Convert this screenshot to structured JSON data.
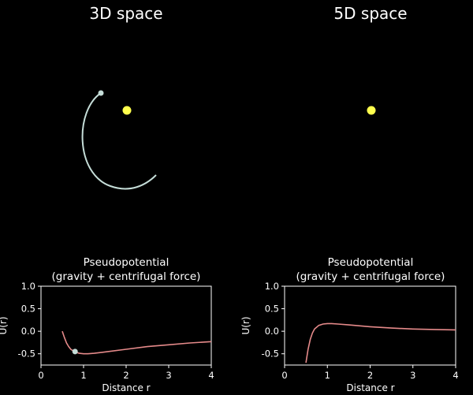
{
  "colors": {
    "background": "#000000",
    "text": "#ffffff",
    "star": "#ffff4d",
    "orbit": "#c5ddd8",
    "planet": "#c5ddd8",
    "curve": "#e58a8a",
    "axes": "#ffffff"
  },
  "panels": [
    {
      "title": "3D space"
    },
    {
      "title": "5D space"
    }
  ],
  "chart_data": [
    {
      "type": "line",
      "title": "Pseudopotential",
      "subtitle": "(gravity + centrifugal force)",
      "xlabel": "Distance r",
      "ylabel": "U(r)",
      "xlim": [
        0,
        4
      ],
      "ylim": [
        -0.75,
        1.0
      ],
      "xticks": [
        "0",
        "1",
        "2",
        "3",
        "4"
      ],
      "yticks": [
        "1.0",
        "0.5",
        "0.0",
        "-0.5"
      ],
      "ytick_values": [
        1.0,
        0.5,
        0.0,
        -0.5
      ],
      "xtick_values": [
        0,
        1,
        2,
        3,
        4
      ],
      "grid": false,
      "series": [
        {
          "x": [
            0.5,
            0.55,
            0.6,
            0.65,
            0.7,
            0.8,
            0.9,
            1.0,
            1.1,
            1.25,
            1.5,
            2.0,
            2.5,
            3.0,
            3.5,
            4.0
          ],
          "y": [
            0.0,
            -0.14,
            -0.26,
            -0.34,
            -0.4,
            -0.46,
            -0.49,
            -0.5,
            -0.5,
            -0.49,
            -0.46,
            -0.4,
            -0.34,
            -0.3,
            -0.26,
            -0.23
          ]
        }
      ],
      "marker": {
        "x": 0.8,
        "y": -0.45
      }
    },
    {
      "type": "line",
      "title": "Pseudopotential",
      "subtitle": "(gravity + centrifugal force)",
      "xlabel": "Distance r",
      "ylabel": "U(r)",
      "xlim": [
        0,
        4
      ],
      "ylim": [
        -0.75,
        1.0
      ],
      "xticks": [
        "0",
        "1",
        "2",
        "3",
        "4"
      ],
      "yticks": [
        "1.0",
        "0.5",
        "0.0",
        "-0.5"
      ],
      "ytick_values": [
        1.0,
        0.5,
        0.0,
        -0.5
      ],
      "xtick_values": [
        0,
        1,
        2,
        3,
        4
      ],
      "grid": false,
      "series": [
        {
          "x": [
            0.5,
            0.55,
            0.6,
            0.65,
            0.7,
            0.8,
            0.9,
            1.0,
            1.1,
            1.25,
            1.5,
            2.0,
            2.5,
            3.0,
            3.5,
            4.0
          ],
          "y": [
            -0.7,
            -0.4,
            -0.18,
            -0.04,
            0.05,
            0.13,
            0.16,
            0.17,
            0.17,
            0.16,
            0.14,
            0.1,
            0.07,
            0.05,
            0.04,
            0.03
          ]
        }
      ]
    }
  ]
}
